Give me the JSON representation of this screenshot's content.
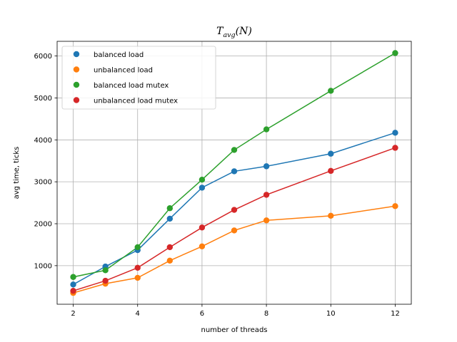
{
  "chart_data": {
    "type": "line",
    "title_main": "T",
    "title_sub": "avg",
    "title_suffix": "(N)",
    "xlabel": "number of threads",
    "ylabel": "avg time, ticks",
    "xlim": [
      1.5,
      12.5
    ],
    "ylim": [
      80,
      6350
    ],
    "xticks": [
      2,
      4,
      6,
      8,
      10,
      12
    ],
    "yticks": [
      1000,
      2000,
      3000,
      4000,
      5000,
      6000
    ],
    "grid": true,
    "legend_position": "top-left",
    "x": [
      2,
      3,
      4,
      5,
      6,
      7,
      8,
      10,
      12
    ],
    "series": [
      {
        "name": "balanced load",
        "color": "#1f77b4",
        "values": [
          550,
          980,
          1370,
          2120,
          2860,
          3250,
          3370,
          3670,
          4170
        ]
      },
      {
        "name": "unbalanced load",
        "color": "#ff7f0e",
        "values": [
          350,
          570,
          710,
          1120,
          1460,
          1840,
          2080,
          2190,
          2420
        ]
      },
      {
        "name": "balanced load mutex",
        "color": "#2ca02c",
        "values": [
          730,
          890,
          1440,
          2370,
          3050,
          3760,
          4250,
          5170,
          6070
        ]
      },
      {
        "name": "unbalanced load mutex",
        "color": "#d62728",
        "values": [
          400,
          640,
          950,
          1440,
          1910,
          2330,
          2690,
          3260,
          3810
        ]
      }
    ]
  }
}
